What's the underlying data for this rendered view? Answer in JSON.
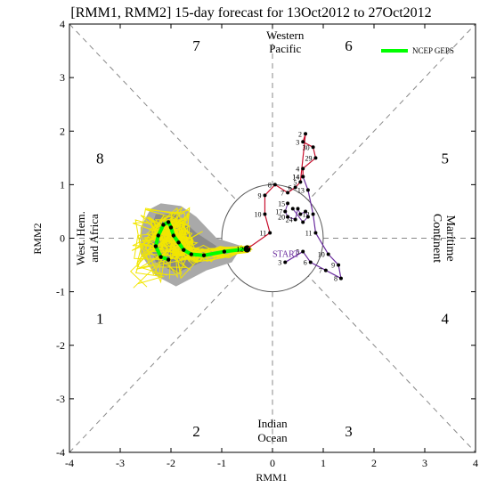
{
  "chart_data": {
    "type": "scatter",
    "title": "[RMM1, RMM2] 15-day forecast for 13Oct2012 to 27Oct2012",
    "xlabel": "RMM1",
    "ylabel": "RMM2",
    "xlim": [
      -4,
      4
    ],
    "ylim": [
      -4,
      4
    ],
    "xticks": [
      "-4",
      "-3",
      "-2",
      "-1",
      "0",
      "1",
      "2",
      "3",
      "4"
    ],
    "yticks": [
      "-4",
      "-3",
      "-2",
      "-1",
      "0",
      "1",
      "2",
      "3",
      "4"
    ],
    "phase_numbers": [
      {
        "label": "1",
        "x": -3.4,
        "y": -1.5
      },
      {
        "label": "2",
        "x": -1.5,
        "y": -3.6
      },
      {
        "label": "3",
        "x": 1.5,
        "y": -3.6
      },
      {
        "label": "4",
        "x": 3.4,
        "y": -1.5
      },
      {
        "label": "5",
        "x": 3.4,
        "y": 1.5
      },
      {
        "label": "6",
        "x": 1.5,
        "y": 3.6
      },
      {
        "label": "7",
        "x": -1.5,
        "y": 3.6
      },
      {
        "label": "8",
        "x": -3.4,
        "y": 1.5
      }
    ],
    "region_labels": {
      "top": [
        "Western",
        "Pacific"
      ],
      "bottom": [
        "Indian",
        "Ocean"
      ],
      "left": [
        "West. Hem.",
        "and Africa"
      ],
      "right": [
        "Maritime",
        "Continent"
      ]
    },
    "legend": {
      "label": "NCEP GEPS",
      "color": "#00ff00",
      "position": "top-right"
    },
    "start_label": "START",
    "unit_circle_radius": 1,
    "observed": {
      "purple_segment": [
        {
          "x": 0.25,
          "y": -0.45,
          "label": "3"
        },
        {
          "x": 0.6,
          "y": -0.25,
          "label": "5"
        },
        {
          "x": 0.75,
          "y": -0.45,
          "label": "6"
        },
        {
          "x": 1.05,
          "y": -0.6,
          "label": "7"
        },
        {
          "x": 1.35,
          "y": -0.75,
          "label": "8"
        },
        {
          "x": 1.3,
          "y": -0.5,
          "label": "9"
        },
        {
          "x": 1.1,
          "y": -0.3,
          "label": "10"
        },
        {
          "x": 0.85,
          "y": 0.1,
          "label": "11"
        },
        {
          "x": 0.8,
          "y": 0.45,
          "label": "12"
        },
        {
          "x": 0.7,
          "y": 0.9,
          "label": "13"
        },
        {
          "x": 0.6,
          "y": 1.15,
          "label": "14"
        }
      ],
      "red_segment": [
        {
          "x": 0.6,
          "y": 1.15,
          "label": "14"
        },
        {
          "x": 0.6,
          "y": 1.3,
          "label": "4"
        },
        {
          "x": 0.85,
          "y": 1.5,
          "label": "29"
        },
        {
          "x": 0.8,
          "y": 1.7,
          "label": "30"
        },
        {
          "x": 0.6,
          "y": 1.8,
          "label": "3"
        },
        {
          "x": 0.65,
          "y": 1.95,
          "label": "2"
        },
        {
          "x": 0.55,
          "y": 1.05,
          "label": "5"
        },
        {
          "x": 0.45,
          "y": 0.95,
          "label": "6"
        },
        {
          "x": 0.3,
          "y": 0.85,
          "label": "7"
        },
        {
          "x": 0.05,
          "y": 1.0,
          "label": "8"
        },
        {
          "x": -0.15,
          "y": 0.8,
          "label": "9"
        },
        {
          "x": -0.15,
          "y": 0.45,
          "label": "10"
        },
        {
          "x": -0.05,
          "y": 0.1,
          "label": "11"
        },
        {
          "x": -0.5,
          "y": -0.2,
          "label": "12"
        }
      ],
      "cluster": [
        {
          "x": 0.3,
          "y": 0.65,
          "label": "15"
        },
        {
          "x": 0.25,
          "y": 0.5,
          "label": "17"
        },
        {
          "x": 0.3,
          "y": 0.4,
          "label": "20"
        },
        {
          "x": 0.45,
          "y": 0.35,
          "label": "24"
        },
        {
          "x": 0.5,
          "y": 0.55,
          "label": ""
        },
        {
          "x": 0.55,
          "y": 0.45,
          "label": ""
        },
        {
          "x": 0.65,
          "y": 0.5,
          "label": ""
        },
        {
          "x": 0.7,
          "y": 0.4,
          "label": ""
        },
        {
          "x": 0.6,
          "y": 0.3,
          "label": ""
        },
        {
          "x": 0.4,
          "y": 0.55,
          "label": ""
        }
      ]
    },
    "forecast_mean": [
      {
        "x": -0.5,
        "y": -0.2
      },
      {
        "x": -0.95,
        "y": -0.25
      },
      {
        "x": -1.35,
        "y": -0.32
      },
      {
        "x": -1.6,
        "y": -0.3
      },
      {
        "x": -1.75,
        "y": -0.22
      },
      {
        "x": -1.85,
        "y": -0.08
      },
      {
        "x": -1.95,
        "y": 0.05
      },
      {
        "x": -2.0,
        "y": 0.2
      },
      {
        "x": -2.05,
        "y": 0.3
      },
      {
        "x": -2.15,
        "y": 0.25
      },
      {
        "x": -2.25,
        "y": 0.05
      },
      {
        "x": -2.3,
        "y": -0.15
      },
      {
        "x": -2.2,
        "y": -0.35
      },
      {
        "x": -2.05,
        "y": -0.4
      }
    ],
    "spread_polygon": [
      {
        "x": -2.4,
        "y": 0.55
      },
      {
        "x": -2.2,
        "y": 0.65
      },
      {
        "x": -1.8,
        "y": 0.6
      },
      {
        "x": -1.5,
        "y": 0.4
      },
      {
        "x": -1.1,
        "y": 0.0
      },
      {
        "x": -0.6,
        "y": -0.15
      },
      {
        "x": -0.8,
        "y": -0.45
      },
      {
        "x": -1.3,
        "y": -0.6
      },
      {
        "x": -1.9,
        "y": -0.9
      },
      {
        "x": -2.3,
        "y": -0.7
      },
      {
        "x": -2.6,
        "y": -0.3
      },
      {
        "x": -2.6,
        "y": 0.2
      }
    ]
  }
}
